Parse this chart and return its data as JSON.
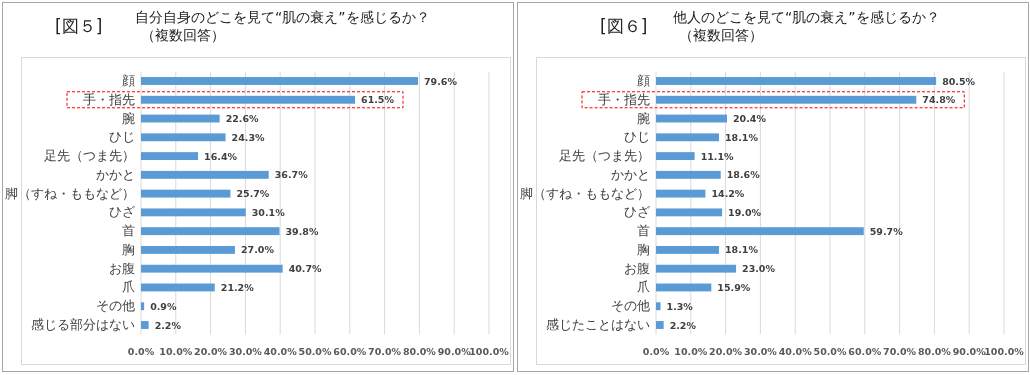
{
  "chart_data": [
    {
      "type": "bar",
      "orientation": "horizontal",
      "title": "[図５]",
      "subtitle": "自分自身のどこを見て“肌の衰え”を感じるか？",
      "annotations": [
        "（複数回答）"
      ],
      "categories": [
        "顔",
        "手・指先",
        "腕",
        "ひじ",
        "足先（つま先）",
        "かかと",
        "脚（すね・ももなど）",
        "ひざ",
        "首",
        "胸",
        "お腹",
        "爪",
        "その他",
        "感じる部分はない"
      ],
      "values": [
        79.6,
        61.5,
        22.6,
        24.3,
        16.4,
        36.7,
        25.7,
        30.1,
        39.8,
        27.0,
        40.7,
        21.2,
        0.9,
        2.2
      ],
      "value_labels": [
        "79.6%",
        "61.5%",
        "22.6%",
        "24.3%",
        "16.4%",
        "36.7%",
        "25.7%",
        "30.1%",
        "39.8%",
        "27.0%",
        "40.7%",
        "21.2%",
        "0.9%",
        "2.2%"
      ],
      "color": "#5b9bd5",
      "xlim": [
        0,
        100
      ],
      "grid": "x",
      "xticks": [
        {
          "value": 0,
          "label": "0.0%"
        },
        {
          "value": 10,
          "label": "10.0%"
        },
        {
          "value": 20,
          "label": "20.0%"
        },
        {
          "value": 30,
          "label": "30.0%"
        },
        {
          "value": 40,
          "label": "40.0%"
        },
        {
          "value": 50,
          "label": "50.0%"
        },
        {
          "value": 60,
          "label": "60.0%"
        },
        {
          "value": 70,
          "label": "70.0%"
        },
        {
          "value": 80,
          "label": "80.0%"
        },
        {
          "value": 90,
          "label": "90.0%"
        },
        {
          "value": 100,
          "label": "100.0%"
        }
      ]
    },
    {
      "type": "bar",
      "orientation": "horizontal",
      "title": "[図６]",
      "subtitle": "他人のどこを見て“肌の衰え”を感じるか？",
      "annotations": [
        "（複数回答）"
      ],
      "categories": [
        "顔",
        "手・指先",
        "腕",
        "ひじ",
        "足先（つま先）",
        "かかと",
        "脚（すね・ももなど）",
        "ひざ",
        "首",
        "胸",
        "お腹",
        "爪",
        "その他",
        "感じたことはない"
      ],
      "values": [
        80.5,
        74.8,
        20.4,
        18.1,
        11.1,
        18.6,
        14.2,
        19.0,
        59.7,
        18.1,
        23.0,
        15.9,
        1.3,
        2.2
      ],
      "value_labels": [
        "80.5%",
        "74.8%",
        "20.4%",
        "18.1%",
        "11.1%",
        "18.6%",
        "14.2%",
        "19.0%",
        "59.7%",
        "18.1%",
        "23.0%",
        "15.9%",
        "1.3%",
        "2.2%"
      ],
      "color": "#5b9bd5",
      "xlim": [
        0,
        100
      ],
      "grid": "x",
      "xticks": [
        {
          "value": 0,
          "label": "0.0%"
        },
        {
          "value": 10,
          "label": "10.0%"
        },
        {
          "value": 20,
          "label": "20.0%"
        },
        {
          "value": 30,
          "label": "30.0%"
        },
        {
          "value": 40,
          "label": "40.0%"
        },
        {
          "value": 50,
          "label": "50.0%"
        },
        {
          "value": 60,
          "label": "60.0%"
        },
        {
          "value": 70,
          "label": "70.0%"
        },
        {
          "value": 80,
          "label": "80.0%"
        },
        {
          "value": 90,
          "label": "90.0%"
        },
        {
          "value": 100,
          "label": "100.0%"
        }
      ]
    }
  ]
}
